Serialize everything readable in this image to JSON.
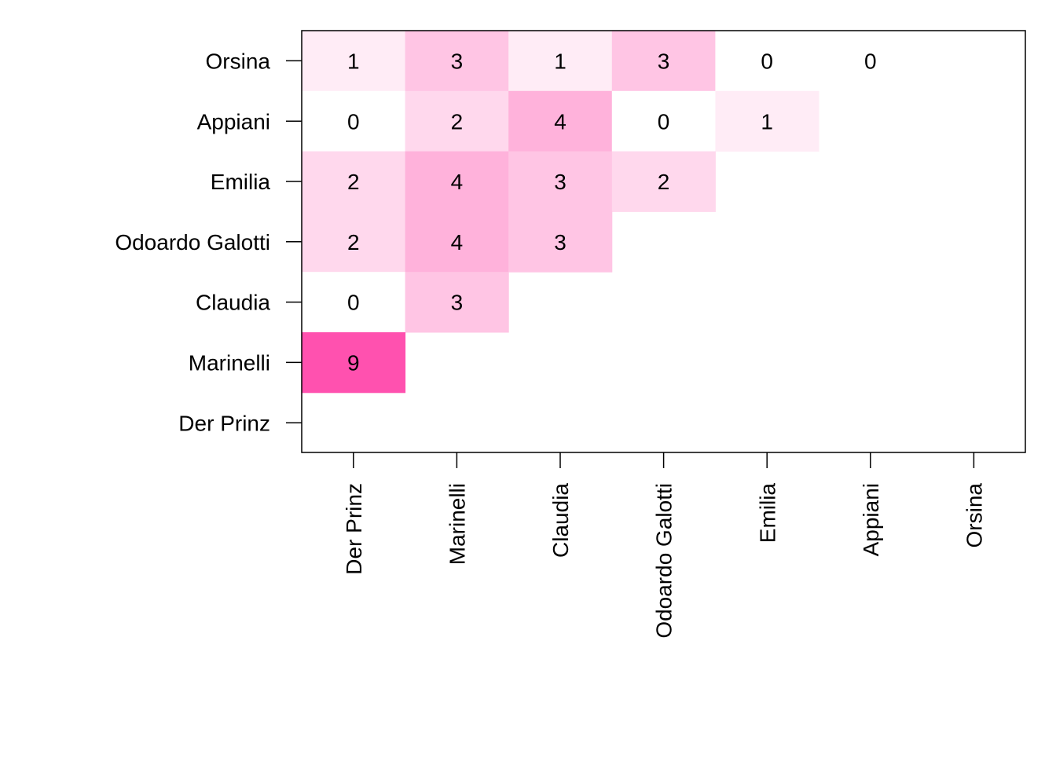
{
  "chart_data": {
    "type": "heatmap",
    "title": "",
    "xlabel": "",
    "ylabel": "",
    "x_categories": [
      "Der Prinz",
      "Marinelli",
      "Claudia",
      "Odoardo Galotti",
      "Emilia",
      "Appiani",
      "Orsina"
    ],
    "y_categories_top_to_bottom": [
      "Orsina",
      "Appiani",
      "Emilia",
      "Odoardo Galotti",
      "Claudia",
      "Marinelli",
      "Der Prinz"
    ],
    "rows": [
      {
        "name": "Orsina",
        "values": [
          1,
          3,
          1,
          3,
          0,
          0
        ]
      },
      {
        "name": "Appiani",
        "values": [
          0,
          2,
          4,
          0,
          1
        ]
      },
      {
        "name": "Emilia",
        "values": [
          2,
          4,
          3,
          2
        ]
      },
      {
        "name": "Odoardo Galotti",
        "values": [
          2,
          4,
          3
        ]
      },
      {
        "name": "Claudia",
        "values": [
          0,
          3
        ]
      },
      {
        "name": "Marinelli",
        "values": [
          9
        ]
      },
      {
        "name": "Der Prinz",
        "values": []
      }
    ],
    "color_low": "#ffffff",
    "color_high": "#ff1493",
    "value_max": 9,
    "grid": false,
    "legend": "none"
  }
}
